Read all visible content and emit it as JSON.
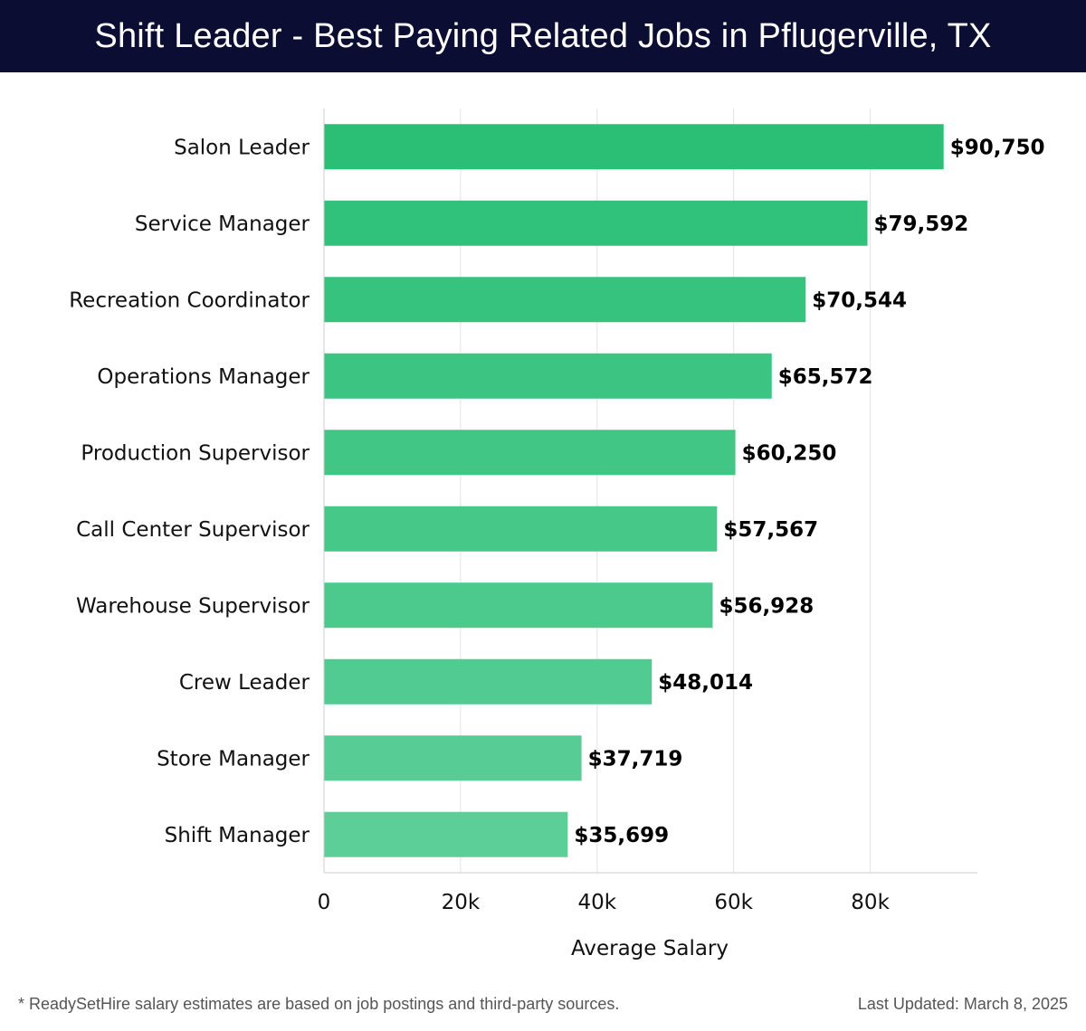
{
  "header": {
    "title": "Shift Leader - Best Paying Related Jobs in Pflugerville, TX"
  },
  "colors": {
    "header_bg": "#0c0d33",
    "bar_top": "#2bbf76",
    "bar_bottom": "#5ccf99",
    "grid": "#e3e3e3"
  },
  "chart_data": {
    "type": "bar",
    "orientation": "horizontal",
    "title": "Shift Leader - Best Paying Related Jobs in Pflugerville, TX",
    "xlabel": "Average Salary",
    "ylabel": "",
    "xlim": [
      0,
      95500
    ],
    "grid": true,
    "xticks": [
      0,
      20000,
      40000,
      60000,
      80000
    ],
    "xtick_labels": [
      "0",
      "20k",
      "40k",
      "60k",
      "80k"
    ],
    "categories": [
      "Salon Leader",
      "Service Manager",
      "Recreation Coordinator",
      "Operations Manager",
      "Production Supervisor",
      "Call Center Supervisor",
      "Warehouse Supervisor",
      "Crew Leader",
      "Store Manager",
      "Shift Manager"
    ],
    "values": [
      90750,
      79592,
      70544,
      65572,
      60250,
      57567,
      56928,
      48014,
      37719,
      35699
    ],
    "value_labels": [
      "$90,750",
      "$79,592",
      "$70,544",
      "$65,572",
      "$60,250",
      "$57,567",
      "$56,928",
      "$48,014",
      "$37,719",
      "$35,699"
    ]
  },
  "footer": {
    "note": "* ReadySetHire salary estimates are based on job postings and third-party sources.",
    "updated": "Last Updated: March 8, 2025"
  }
}
